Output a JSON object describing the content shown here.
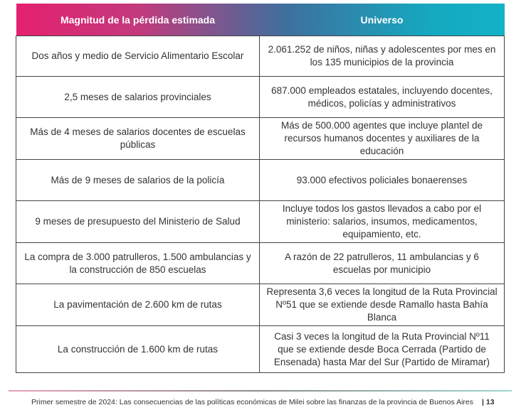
{
  "table": {
    "headers": [
      "Magnitud de la pérdida estimada",
      "Universo"
    ],
    "rows": [
      [
        "Dos años y medio de Servicio Alimentario Escolar",
        "2.061.252 de niños, niñas y adolescentes por mes en los 135 municipios de la provincia"
      ],
      [
        "2,5 meses de salarios provinciales",
        "687.000 empleados estatales, incluyendo docentes, médicos, policías y administrativos"
      ],
      [
        "Más de 4 meses de salarios docentes de escuelas públicas",
        "Más de 500.000 agentes que incluye plantel de recursos humanos docentes y auxiliares de la educación"
      ],
      [
        "Más de 9 meses de salarios de la policía",
        "93.000 efectivos policiales bonaerenses"
      ],
      [
        "9 meses de presupuesto del Ministerio de Salud",
        "Incluye todos los gastos llevados a cabo por el ministerio: salarios, insumos, medicamentos, equipamiento, etc."
      ],
      [
        "La compra de 3.000 patrulleros, 1.500 ambulancias y la construcción de 850 escuelas",
        "A razón de 22 patrulleros, 11 ambulancias y 6 escuelas por municipio"
      ],
      [
        "La pavimentación de 2.600 km de rutas",
        "Representa 3,6 veces la longitud de la Ruta Provincial Nº51 que se extiende desde Ramallo hasta Bahía Blanca"
      ],
      [
        "La construcción de 1.600 km de rutas",
        "Casi 3 veces la longitud de la Ruta Provincial Nº11 que se extiende desde Boca Cerrada (Partido de Ensenada) hasta Mar del Sur (Partido de Miramar)"
      ]
    ]
  },
  "footer": {
    "text": "Primer semestre de 2024: Las consecuencias de las políticas económicas de Milei sobre las finanzas de la provincia de Buenos Aires",
    "page": "| 13"
  }
}
